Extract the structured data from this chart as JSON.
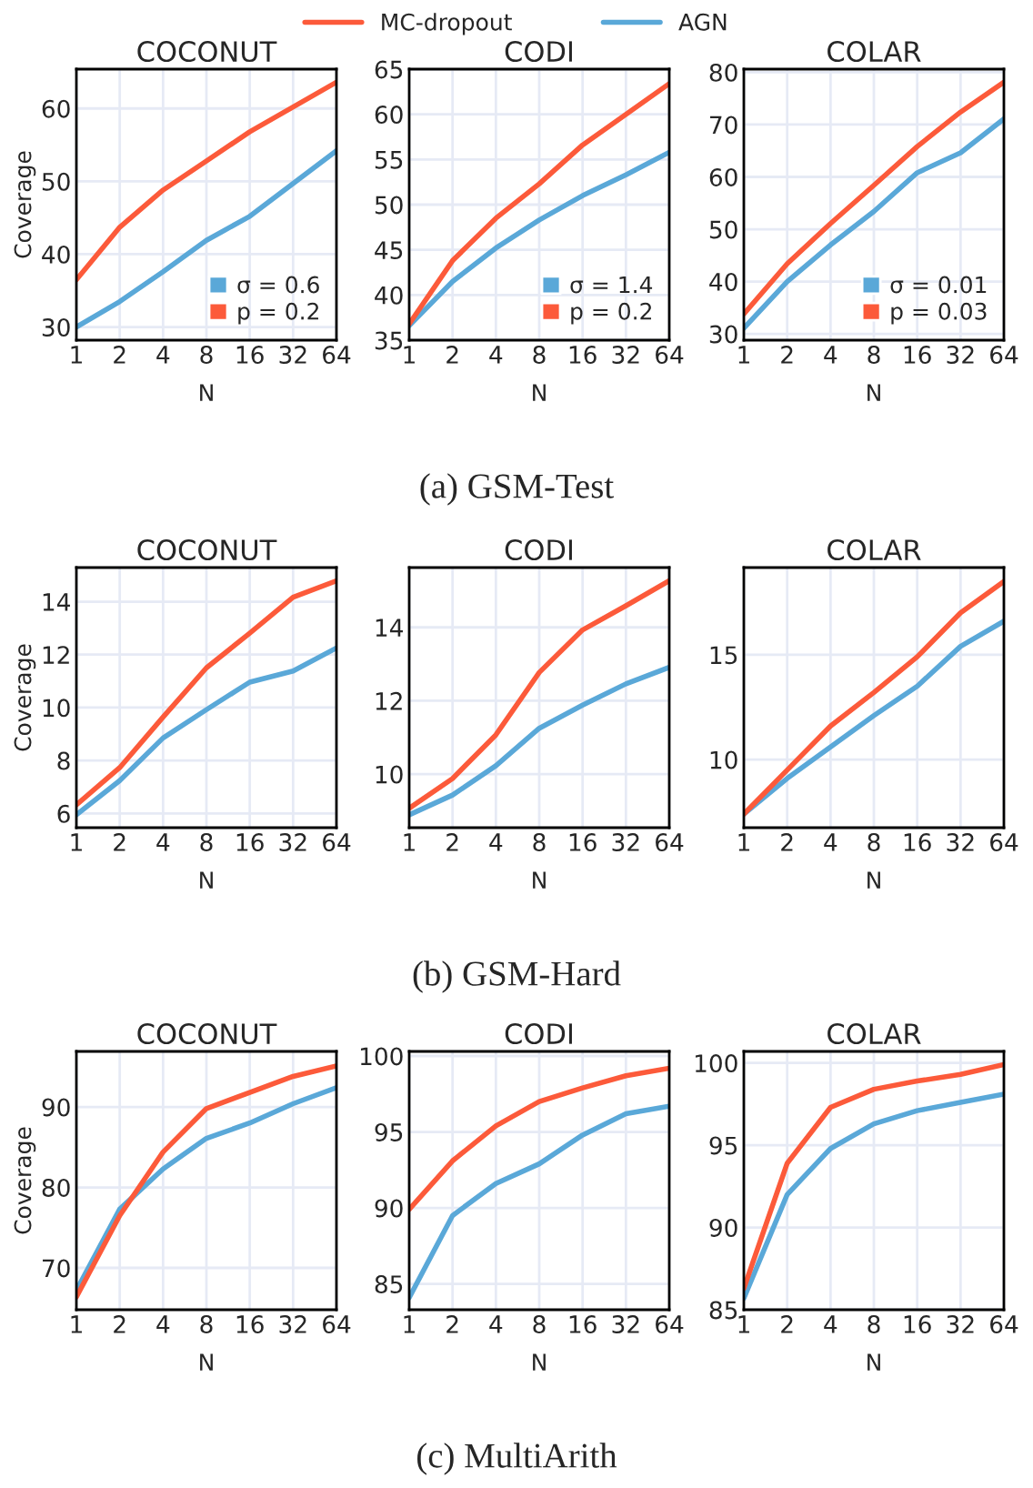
{
  "chart_data": [
    {
      "type": "line",
      "title": "COCONUT",
      "xlabel": "N",
      "ylabel": "Coverage",
      "categories": [
        "1",
        "2",
        "4",
        "8",
        "16",
        "32",
        "64"
      ],
      "ylim": [
        28.2,
        65.4
      ],
      "yticks": [
        30,
        40,
        50,
        60
      ],
      "grid": true,
      "legend": "top",
      "annotations": [
        "σ = 0.6",
        "p = 0.2"
      ],
      "series": [
        {
          "name": "AGN",
          "color": "#5aa8d8",
          "values": [
            30.0,
            33.5,
            37.6,
            41.9,
            45.2,
            49.7,
            54.2
          ]
        },
        {
          "name": "MC-dropout",
          "color": "#fc5a3a",
          "values": [
            36.5,
            43.7,
            48.8,
            52.8,
            56.8,
            60.2,
            63.6
          ]
        }
      ]
    },
    {
      "type": "line",
      "title": "CODI",
      "xlabel": "N",
      "subtitle": "(a) GSM-Test",
      "categories": [
        "1",
        "2",
        "4",
        "8",
        "16",
        "32",
        "64"
      ],
      "ylim": [
        35,
        65
      ],
      "yticks": [
        35,
        40,
        45,
        50,
        55,
        60,
        65
      ],
      "grid": true,
      "annotations": [
        "σ = 1.4",
        "p = 0.2"
      ],
      "series": [
        {
          "color": "#5aa8d8",
          "values": [
            36.6,
            41.5,
            45.2,
            48.3,
            51.0,
            53.3,
            55.8
          ]
        },
        {
          "color": "#fc5a3a",
          "values": [
            36.8,
            43.8,
            48.5,
            52.3,
            56.6,
            60.0,
            63.4
          ]
        }
      ]
    },
    {
      "type": "line",
      "title": "COLAR",
      "xlabel": "N",
      "categories": [
        "1",
        "2",
        "4",
        "8",
        "16",
        "32",
        "64"
      ],
      "ylim": [
        28.8,
        80.6
      ],
      "yticks": [
        30,
        40,
        50,
        60,
        70,
        80
      ],
      "grid": true,
      "annotations": [
        "σ = 0.01",
        "p = 0.03"
      ],
      "series": [
        {
          "color": "#5aa8d8",
          "values": [
            31.1,
            40.0,
            47.0,
            53.4,
            60.8,
            64.6,
            71.1
          ]
        },
        {
          "color": "#fc5a3a",
          "values": [
            33.8,
            43.4,
            51.1,
            58.4,
            65.8,
            72.4,
            78.1
          ]
        }
      ]
    },
    {
      "type": "line",
      "title": "COCONUT",
      "xlabel": "N",
      "ylabel": "Coverage",
      "categories": [
        "1",
        "2",
        "4",
        "8",
        "16",
        "32",
        "64"
      ],
      "ylim": [
        5.46,
        15.29
      ],
      "yticks": [
        6,
        8,
        10,
        12,
        14
      ],
      "grid": true,
      "series": [
        {
          "color": "#5aa8d8",
          "values": [
            5.95,
            7.24,
            8.85,
            9.92,
            10.96,
            11.38,
            12.25
          ]
        },
        {
          "color": "#fc5a3a",
          "values": [
            6.32,
            7.73,
            9.64,
            11.5,
            12.81,
            14.17,
            14.79
          ]
        }
      ]
    },
    {
      "type": "line",
      "title": "CODI",
      "xlabel": "N",
      "subtitle": "(b) GSM-Hard",
      "categories": [
        "1",
        "2",
        "4",
        "8",
        "16",
        "32",
        "64"
      ],
      "ylim": [
        8.54,
        15.63
      ],
      "yticks": [
        10,
        12,
        14
      ],
      "grid": true,
      "series": [
        {
          "color": "#5aa8d8",
          "values": [
            8.89,
            9.43,
            10.23,
            11.25,
            11.88,
            12.46,
            12.91
          ]
        },
        {
          "color": "#fc5a3a",
          "values": [
            9.07,
            9.88,
            11.07,
            12.77,
            13.93,
            14.59,
            15.27
          ]
        }
      ]
    },
    {
      "type": "line",
      "title": "COLAR",
      "xlabel": "N",
      "categories": [
        "1",
        "2",
        "4",
        "8",
        "16",
        "32",
        "64"
      ],
      "ylim": [
        6.75,
        19.16
      ],
      "yticks": [
        10,
        15
      ],
      "grid": true,
      "series": [
        {
          "color": "#5aa8d8",
          "values": [
            7.4,
            9.1,
            10.6,
            12.1,
            13.5,
            15.4,
            16.6
          ]
        },
        {
          "color": "#fc5a3a",
          "values": [
            7.4,
            9.5,
            11.6,
            13.2,
            14.9,
            17.0,
            18.5
          ]
        }
      ]
    },
    {
      "type": "line",
      "title": "COCONUT",
      "xlabel": "N",
      "ylabel": "Coverage",
      "categories": [
        "1",
        "2",
        "4",
        "8",
        "16",
        "32",
        "64"
      ],
      "ylim": [
        64.8,
        96.9
      ],
      "yticks": [
        70,
        80,
        90
      ],
      "grid": true,
      "series": [
        {
          "color": "#5aa8d8",
          "values": [
            67.2,
            77.3,
            82.3,
            86.1,
            88.0,
            90.4,
            92.4
          ]
        },
        {
          "color": "#fc5a3a",
          "values": [
            66.4,
            76.5,
            84.4,
            89.8,
            91.8,
            93.8,
            95.1
          ]
        }
      ]
    },
    {
      "type": "line",
      "title": "CODI",
      "xlabel": "N",
      "subtitle": "(c) MultiArith",
      "categories": [
        "1",
        "2",
        "4",
        "8",
        "16",
        "32",
        "64"
      ],
      "ylim": [
        83.3,
        100.3
      ],
      "yticks": [
        85,
        90,
        95,
        100
      ],
      "grid": true,
      "series": [
        {
          "color": "#5aa8d8",
          "values": [
            84.1,
            89.5,
            91.6,
            92.9,
            94.8,
            96.2,
            96.7
          ]
        },
        {
          "color": "#fc5a3a",
          "values": [
            89.9,
            93.1,
            95.4,
            97.0,
            97.9,
            98.7,
            99.2
          ]
        }
      ]
    },
    {
      "type": "line",
      "title": "COLAR",
      "xlabel": "N",
      "categories": [
        "1",
        "2",
        "4",
        "8",
        "16",
        "32",
        "64"
      ],
      "ylim": [
        85,
        100.7
      ],
      "yticks": [
        85,
        90,
        95,
        100
      ],
      "grid": true,
      "series": [
        {
          "color": "#5aa8d8",
          "values": [
            85.7,
            92.0,
            94.8,
            96.3,
            97.1,
            97.6,
            98.1
          ]
        },
        {
          "color": "#fc5a3a",
          "values": [
            86.3,
            93.9,
            97.3,
            98.4,
            98.9,
            99.3,
            99.9
          ]
        }
      ]
    }
  ]
}
